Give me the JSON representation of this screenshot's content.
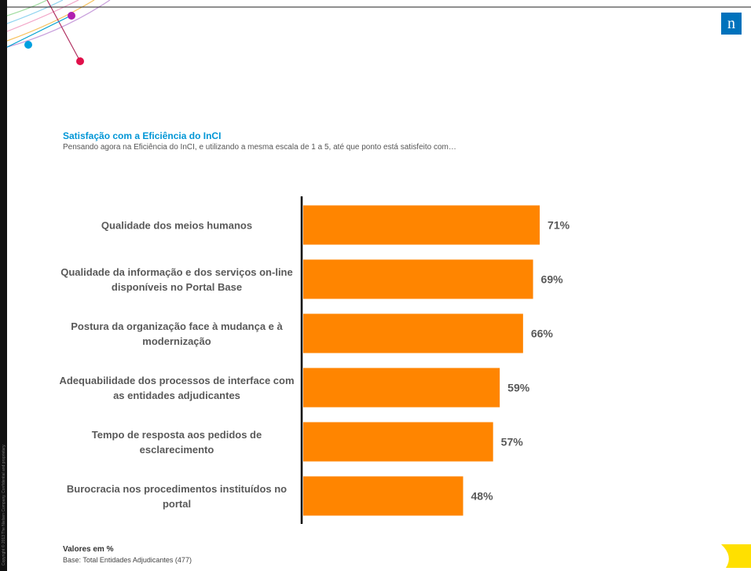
{
  "chart_data": {
    "type": "barh",
    "title": "Satisfação com a Eficiência do InCI",
    "subtitle": "Pensando agora na Eficiência do InCI, e utilizando a mesma escala de 1 a 5, até que ponto está satisfeito com…",
    "categories": [
      "Qualidade dos meios humanos",
      "Qualidade da informação e dos serviços on-line disponíveis no Portal Base",
      "Postura da organização face à mudança e à modernização",
      "Adequabilidade dos processos de interface com as entidades adjudicantes",
      "Tempo de resposta aos pedidos de esclarecimento",
      "Burocracia nos procedimentos instituídos no portal"
    ],
    "values": [
      71,
      69,
      66,
      59,
      57,
      48
    ],
    "value_labels": [
      "71%",
      "69%",
      "66%",
      "59%",
      "57%",
      "48%"
    ],
    "color": "#ff8500",
    "xlim": [
      0,
      100
    ]
  },
  "footer": {
    "note": "Valores em %",
    "base": "Base: Total Entidades Adjudicantes (477)"
  },
  "copyright": "Copyright © 2013 The Nielsen Company. Confidential and proprietary.",
  "logo": "n"
}
